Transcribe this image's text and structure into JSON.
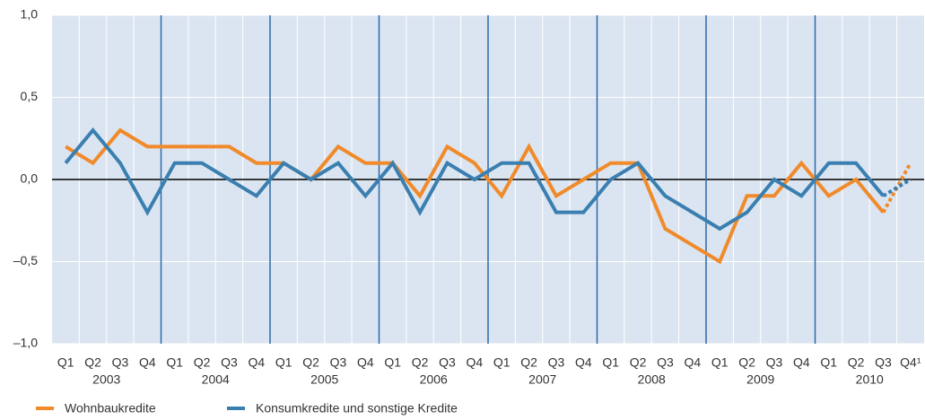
{
  "chart_data": {
    "type": "line",
    "categories": [
      "Q1",
      "Q2",
      "Q3",
      "Q4",
      "Q1",
      "Q2",
      "Q3",
      "Q4",
      "Q1",
      "Q2",
      "Q3",
      "Q4",
      "Q1",
      "Q2",
      "Q3",
      "Q4",
      "Q1",
      "Q2",
      "Q3",
      "Q4",
      "Q1",
      "Q2",
      "Q3",
      "Q4",
      "Q1",
      "Q2",
      "Q3",
      "Q4",
      "Q1",
      "Q2",
      "Q3",
      "Q4¹"
    ],
    "x_groups": [
      "2003",
      "2004",
      "2005",
      "2006",
      "2007",
      "2008",
      "2009",
      "2010"
    ],
    "series": [
      {
        "name": "Wohnbaukredite",
        "color": "#f08a2a",
        "dash_last_segment": true,
        "values": [
          0.2,
          0.1,
          0.3,
          0.2,
          0.2,
          0.2,
          0.2,
          0.1,
          0.1,
          0.0,
          0.2,
          0.1,
          0.1,
          -0.1,
          0.2,
          0.1,
          -0.1,
          0.2,
          -0.1,
          0.0,
          0.1,
          0.1,
          -0.3,
          -0.4,
          -0.5,
          -0.1,
          -0.1,
          0.1,
          -0.1,
          0.0,
          -0.2,
          0.1
        ]
      },
      {
        "name": "Konsumkredite und sonstige Kredite",
        "color": "#3a7fb0",
        "dash_last_segment": true,
        "values": [
          0.1,
          0.3,
          0.1,
          -0.2,
          0.1,
          0.1,
          0.0,
          -0.1,
          0.1,
          0.0,
          0.1,
          -0.1,
          0.1,
          -0.2,
          0.1,
          0.0,
          0.1,
          0.1,
          -0.2,
          -0.2,
          0.0,
          0.1,
          -0.1,
          -0.2,
          -0.3,
          -0.2,
          0.0,
          -0.1,
          0.1,
          0.1,
          -0.1,
          0.0
        ]
      }
    ],
    "ylim": [
      -1.0,
      1.0
    ],
    "yticks": [
      {
        "value": -1.0,
        "label": "–1,0"
      },
      {
        "value": -0.5,
        "label": "–0,5"
      },
      {
        "value": 0,
        "label": "0,0"
      },
      {
        "value": 0.5,
        "label": "0,5"
      },
      {
        "value": 1.0,
        "label": "1,0"
      }
    ],
    "grid": true,
    "legend": "bottom-left"
  }
}
